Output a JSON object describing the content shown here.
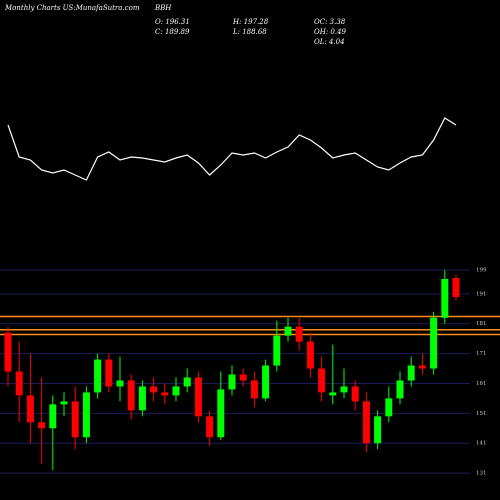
{
  "chart_data": {
    "type": "candlestick",
    "source": "Monthly Charts US:MunafaSutra.com",
    "title": "BBH",
    "info": [
      "O: 196.31",
      "H: 197.28",
      "OC: 3.38",
      "C: 189.89",
      "L: 188.68",
      "OH: 0.49",
      "OL: 4.04"
    ],
    "up_color": "#00ff00",
    "down_color": "#ff0000",
    "open": [
      178,
      165,
      157,
      148,
      146,
      154,
      155,
      143,
      158,
      169,
      160,
      162,
      152,
      160,
      158,
      157,
      160,
      163,
      150,
      143,
      159,
      164,
      162,
      156,
      167,
      177,
      180,
      175,
      166,
      157,
      158,
      160,
      155,
      141,
      150,
      156,
      162,
      167,
      166,
      183,
      196.31
    ],
    "high": [
      180,
      175,
      171,
      163,
      157,
      158,
      160,
      160,
      171,
      171,
      170,
      164,
      162,
      163,
      161,
      163,
      166,
      165,
      152,
      165,
      167,
      166,
      165,
      169,
      182,
      183,
      183,
      178,
      170,
      174,
      166,
      162,
      158,
      152,
      160,
      165,
      170,
      171,
      185,
      199,
      197.28
    ],
    "low": [
      160,
      148,
      141,
      134,
      132,
      150,
      139,
      141,
      156,
      158,
      155,
      149,
      150,
      155,
      154,
      155,
      158,
      148,
      140,
      142,
      157,
      160,
      153,
      155,
      165,
      175,
      172,
      163,
      155,
      154,
      156,
      152,
      138,
      139,
      148,
      154,
      160,
      164,
      164,
      181,
      188.68
    ],
    "close": [
      165,
      157,
      148,
      146,
      154,
      155,
      143,
      158,
      169,
      160,
      162,
      152,
      160,
      158,
      157,
      160,
      163,
      150,
      143,
      159,
      164,
      162,
      156,
      167,
      177,
      180,
      175,
      166,
      158,
      158,
      160,
      155,
      141,
      150,
      156,
      162,
      167,
      166,
      183,
      196,
      189.89
    ],
    "ylim": [
      126,
      203
    ],
    "yticks": [
      131,
      141,
      151,
      161,
      171,
      181,
      191,
      199
    ],
    "levels": [
      183.4,
      179,
      177.4
    ],
    "level_color": "#ff8c1a",
    "grid": true,
    "indicator": {
      "color": "#ffffff",
      "ylim": [
        0,
        100
      ],
      "values": [
        75,
        43,
        40,
        30,
        27,
        30,
        25,
        20,
        43,
        48,
        40,
        43,
        42,
        40,
        38,
        42,
        45,
        37,
        25,
        35,
        47,
        45,
        47,
        42,
        48,
        53,
        65,
        60,
        52,
        42,
        45,
        47,
        40,
        33,
        30,
        37,
        43,
        45,
        60,
        82,
        75
      ]
    }
  }
}
